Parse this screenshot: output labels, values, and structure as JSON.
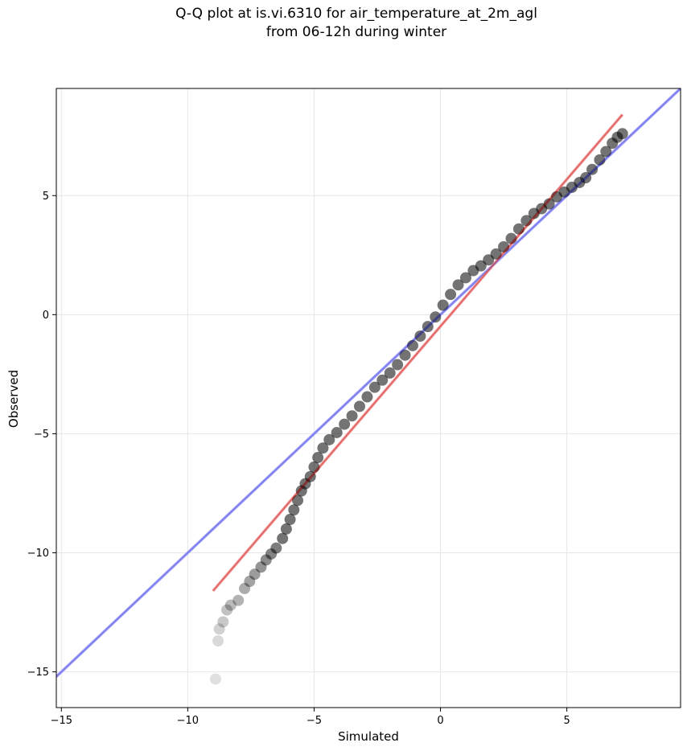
{
  "title_line1": "Q-Q plot at is.vi.6310 for air_temperature_at_2m_agl",
  "title_line2": "from 06-12h during winter",
  "chart_data": {
    "type": "scatter",
    "title": "Q-Q plot at is.vi.6310 for air_temperature_at_2m_agl\nfrom 06-12h during winter",
    "xlabel": "Simulated",
    "ylabel": "Observed",
    "xlim": [
      -15.2,
      9.5
    ],
    "ylim": [
      -16.5,
      9.5
    ],
    "xticks": [
      -15,
      -10,
      -5,
      0,
      5
    ],
    "yticks": [
      -15,
      -10,
      -5,
      0,
      5
    ],
    "grid": true,
    "series": [
      {
        "kind": "quantile-points",
        "color": "#000000",
        "points": [
          [
            -8.9,
            -15.3
          ],
          [
            -8.8,
            -13.7
          ],
          [
            -8.75,
            -13.2
          ],
          [
            -8.6,
            -12.9
          ],
          [
            -8.45,
            -12.4
          ],
          [
            -8.3,
            -12.2
          ],
          [
            -8.0,
            -12.0
          ],
          [
            -7.75,
            -11.5
          ],
          [
            -7.55,
            -11.2
          ],
          [
            -7.35,
            -10.9
          ],
          [
            -7.1,
            -10.6
          ],
          [
            -6.9,
            -10.3
          ],
          [
            -6.7,
            -10.05
          ],
          [
            -6.5,
            -9.8
          ],
          [
            -6.25,
            -9.4
          ],
          [
            -6.1,
            -9.0
          ],
          [
            -5.95,
            -8.6
          ],
          [
            -5.8,
            -8.2
          ],
          [
            -5.65,
            -7.8
          ],
          [
            -5.5,
            -7.4
          ],
          [
            -5.35,
            -7.1
          ],
          [
            -5.15,
            -6.8
          ],
          [
            -5.0,
            -6.4
          ],
          [
            -4.85,
            -6.0
          ],
          [
            -4.65,
            -5.6
          ],
          [
            -4.4,
            -5.25
          ],
          [
            -4.1,
            -4.95
          ],
          [
            -3.8,
            -4.6
          ],
          [
            -3.5,
            -4.25
          ],
          [
            -3.2,
            -3.85
          ],
          [
            -2.9,
            -3.45
          ],
          [
            -2.6,
            -3.05
          ],
          [
            -2.3,
            -2.75
          ],
          [
            -2.0,
            -2.45
          ],
          [
            -1.7,
            -2.1
          ],
          [
            -1.4,
            -1.7
          ],
          [
            -1.1,
            -1.3
          ],
          [
            -0.8,
            -0.9
          ],
          [
            -0.5,
            -0.5
          ],
          [
            -0.2,
            -0.1
          ],
          [
            0.1,
            0.4
          ],
          [
            0.4,
            0.85
          ],
          [
            0.7,
            1.25
          ],
          [
            1.0,
            1.55
          ],
          [
            1.3,
            1.85
          ],
          [
            1.6,
            2.05
          ],
          [
            1.9,
            2.3
          ],
          [
            2.2,
            2.55
          ],
          [
            2.5,
            2.85
          ],
          [
            2.8,
            3.2
          ],
          [
            3.1,
            3.6
          ],
          [
            3.4,
            3.95
          ],
          [
            3.7,
            4.25
          ],
          [
            4.0,
            4.45
          ],
          [
            4.3,
            4.65
          ],
          [
            4.6,
            4.95
          ],
          [
            4.9,
            5.15
          ],
          [
            5.2,
            5.35
          ],
          [
            5.5,
            5.55
          ],
          [
            5.75,
            5.75
          ],
          [
            6.0,
            6.1
          ],
          [
            6.3,
            6.5
          ],
          [
            6.55,
            6.85
          ],
          [
            6.8,
            7.2
          ],
          [
            7.0,
            7.45
          ],
          [
            7.2,
            7.6
          ]
        ]
      },
      {
        "kind": "identity-line",
        "color": "#aaaaff",
        "points": [
          [
            -16.5,
            -16.5
          ],
          [
            9.6,
            9.6
          ]
        ]
      },
      {
        "kind": "fit-line",
        "color": "#f5a3a3",
        "points": [
          [
            -9.0,
            -11.6
          ],
          [
            7.2,
            8.4
          ]
        ]
      }
    ]
  }
}
